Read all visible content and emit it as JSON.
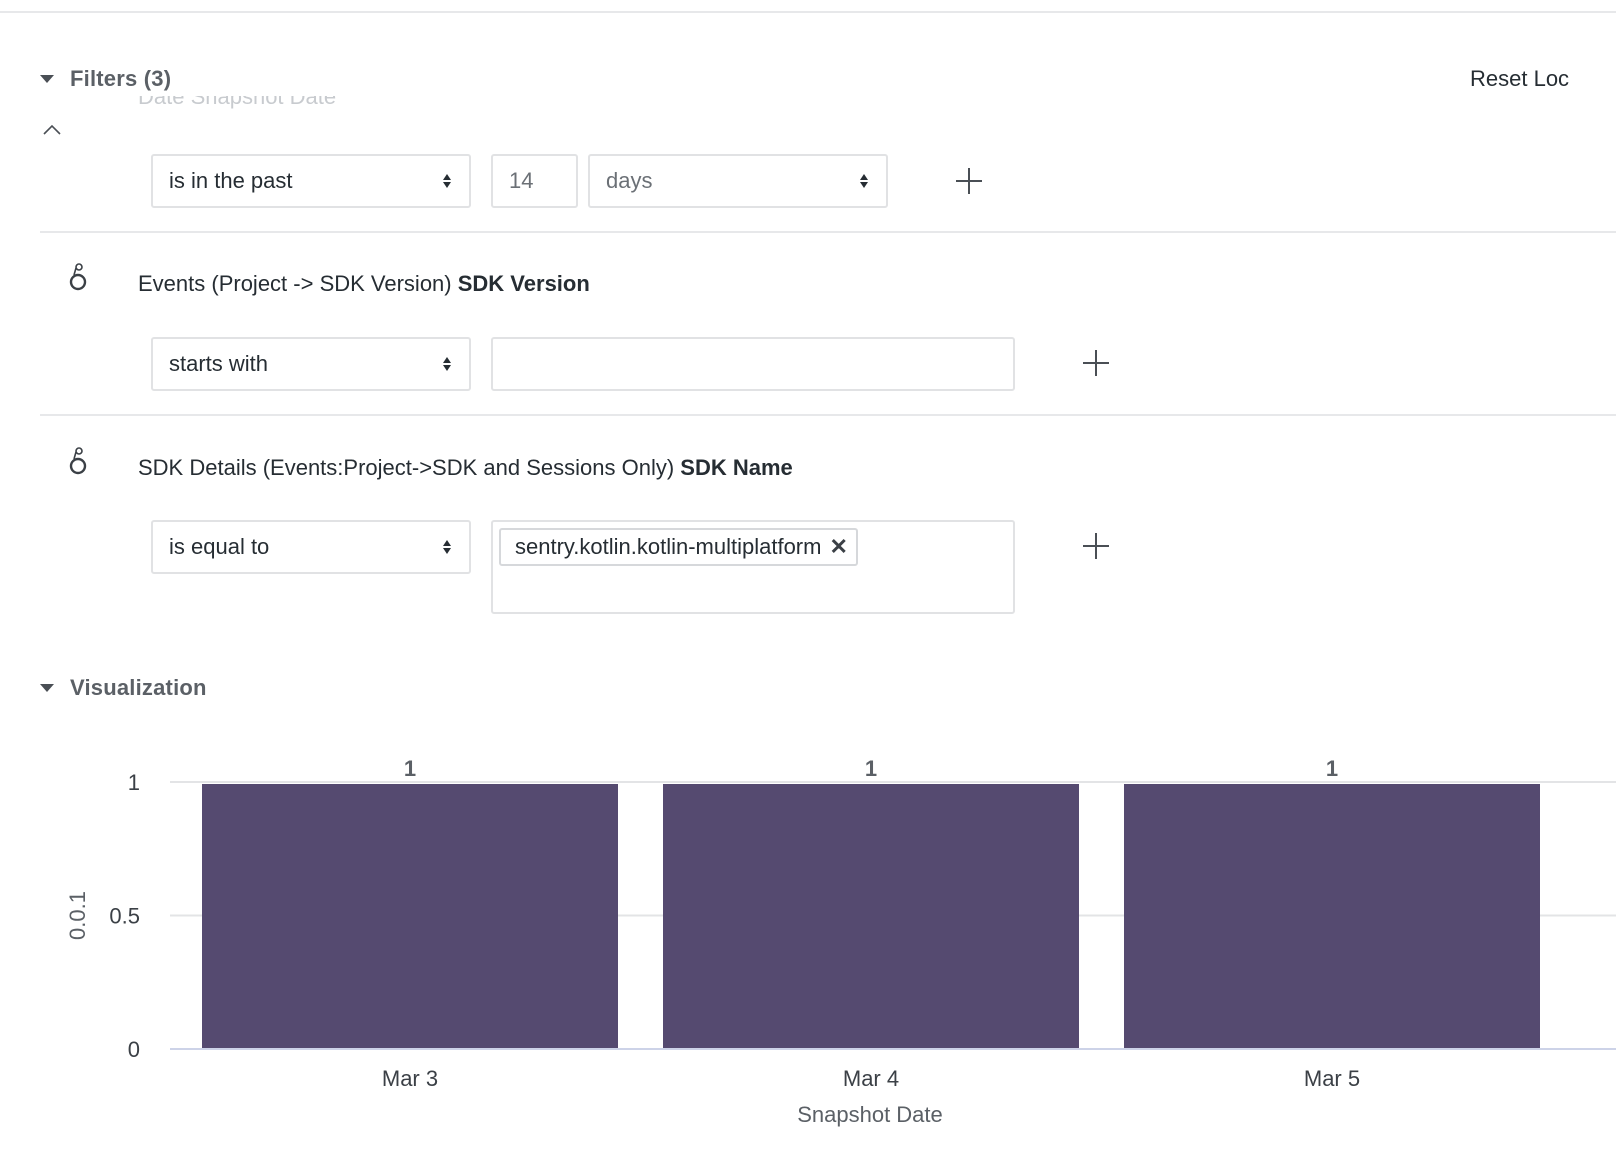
{
  "filters": {
    "title": "Filters (3)",
    "reset_label": "Reset Loc",
    "rows": [
      {
        "operator": "is in the past",
        "number_value": "14",
        "unit": "days"
      },
      {
        "field_prefix": "Events (Project -> SDK Version)",
        "field_name": "SDK Version",
        "operator": "starts with",
        "value": ""
      },
      {
        "field_prefix": "SDK Details (Events:Project->SDK and Sessions Only)",
        "field_name": "SDK Name",
        "operator": "is equal to",
        "chips": [
          "sentry.kotlin.kotlin-multiplatform"
        ]
      }
    ]
  },
  "visualization": {
    "title": "Visualization"
  },
  "colors": {
    "bar": "#554a70",
    "gridline": "#e3e4e6",
    "axis": "#cdd3e8"
  },
  "chart_data": {
    "type": "bar",
    "categories": [
      "Mar 3",
      "Mar 4",
      "Mar 5"
    ],
    "values": [
      1,
      1,
      1
    ],
    "data_labels": [
      "1",
      "1",
      "1"
    ],
    "xlabel": "Snapshot Date",
    "ylabel": "0.0.1",
    "ylim": [
      0,
      1
    ],
    "yticks": [
      "0",
      "0.5",
      "1"
    ],
    "grid": true
  }
}
